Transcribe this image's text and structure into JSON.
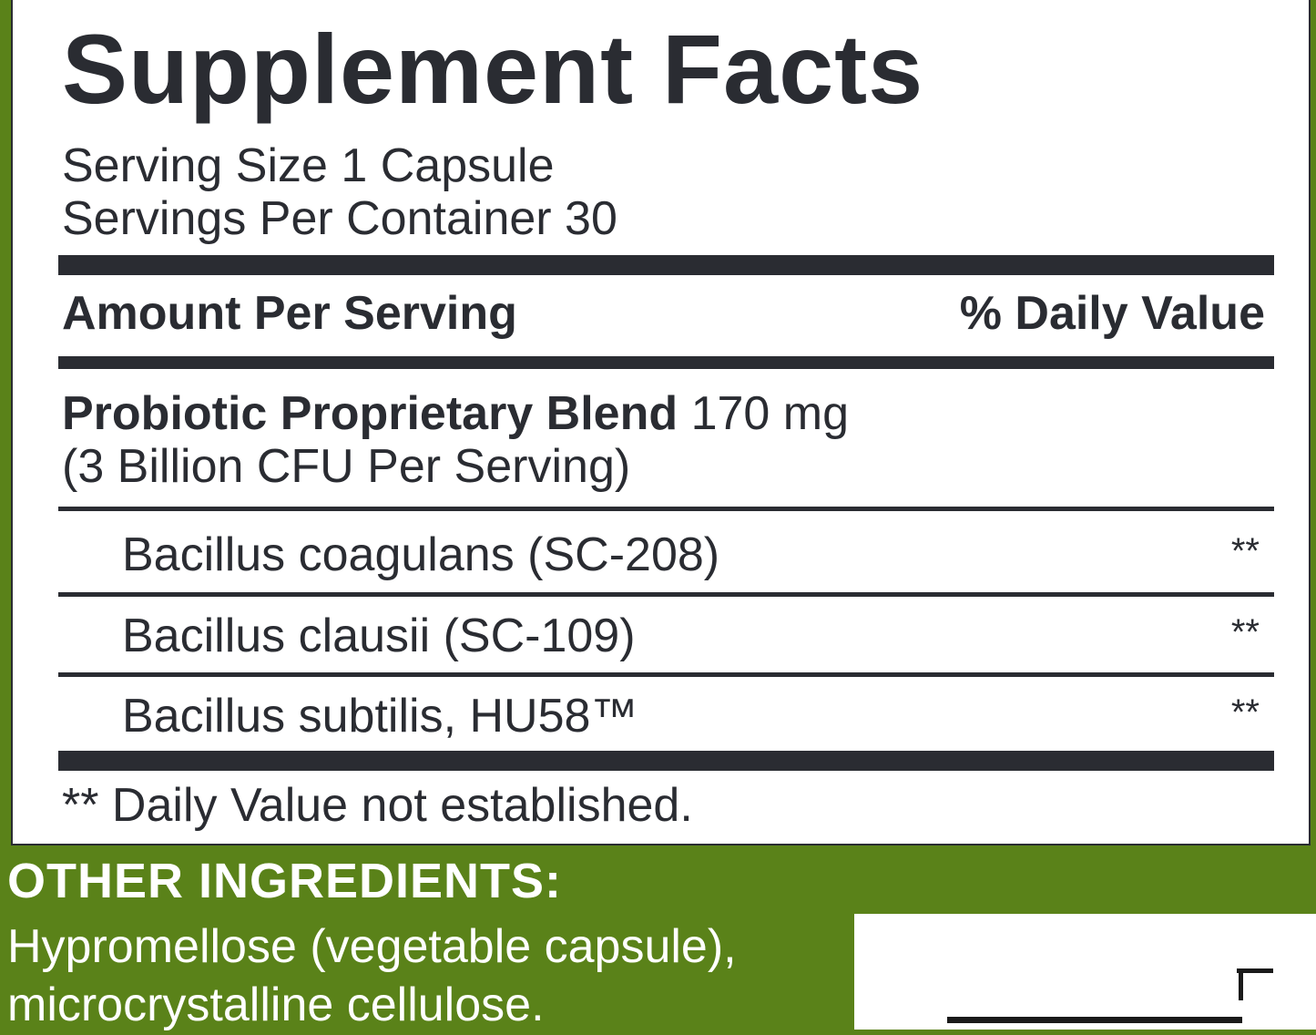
{
  "panel": {
    "title": "Supplement Facts",
    "serving_size": "Serving Size 1 Capsule",
    "servings_per_container": "Servings Per Container 30",
    "header": {
      "amount": "Amount Per Serving",
      "daily_value": "% Daily Value"
    },
    "blend": {
      "name": "Probiotic Proprietary Blend",
      "amount": "170 mg",
      "cfu": "(3 Billion CFU Per Serving)"
    },
    "ingredients": [
      {
        "name": "Bacillus coagulans (SC-208)",
        "dv": "**"
      },
      {
        "name": "Bacillus clausii (SC-109)",
        "dv": "**"
      },
      {
        "name": "Bacillus subtilis, HU58™",
        "dv": "**"
      }
    ],
    "footnote": "** Daily Value not established."
  },
  "other_ingredients": {
    "heading": "OTHER INGREDIENTS:",
    "line1": "Hypromellose (vegetable capsule),",
    "line2": "microcrystalline cellulose."
  },
  "colors": {
    "brand_green": "#5a8219",
    "ink": "#2a2c32",
    "background": "#ffffff"
  }
}
